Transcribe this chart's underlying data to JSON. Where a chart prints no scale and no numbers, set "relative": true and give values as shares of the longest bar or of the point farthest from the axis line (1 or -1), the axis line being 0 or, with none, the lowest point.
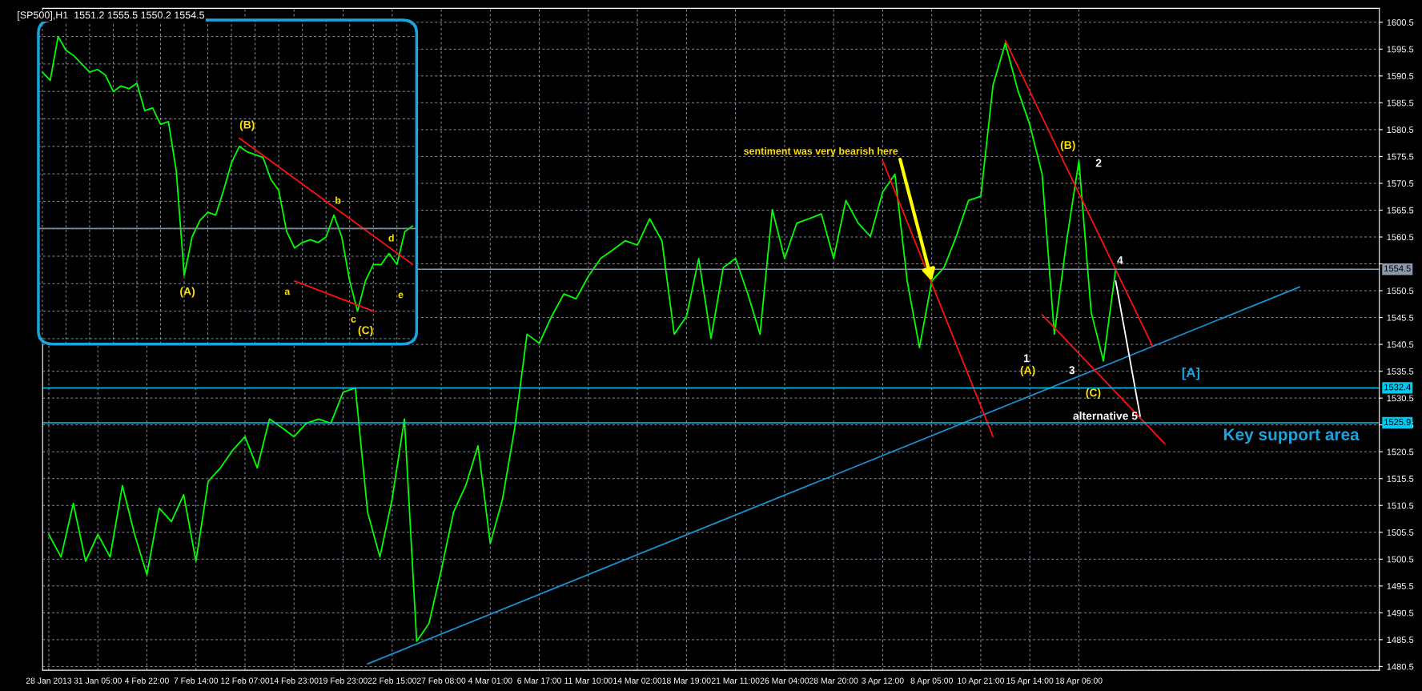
{
  "chart_data": [
    {
      "type": "line",
      "title": "[SP500],H1  1551.2 1555.5 1550.2 1554.5",
      "categories": [
        "28 Jan 2013",
        null,
        null,
        null,
        "31 Jan 05:00",
        null,
        null,
        null,
        "4 Feb 22:00",
        null,
        null,
        null,
        "7 Feb 14:00",
        null,
        null,
        null,
        "12 Feb 07:00",
        null,
        null,
        null,
        "14 Feb 23:00",
        null,
        null,
        null,
        "19 Feb 23:00",
        null,
        null,
        null,
        "22 Feb 15:00",
        null,
        null,
        null,
        "27 Feb 08:00",
        null,
        null,
        null,
        "4 Mar 01:00",
        null,
        null,
        null,
        "6 Mar 17:00",
        null,
        null,
        null,
        "11 Mar 10:00",
        null,
        null,
        null,
        "14 Mar 02:00",
        null,
        null,
        null,
        "18 Mar 19:00",
        null,
        null,
        null,
        "21 Mar 11:00",
        null,
        null,
        null,
        "26 Mar 04:00",
        null,
        null,
        null,
        "28 Mar 20:00",
        null,
        null,
        null,
        "3 Apr 12:00",
        null,
        null,
        null,
        "8 Apr 05:00",
        null,
        null,
        null,
        "10 Apr 21:00",
        null,
        null,
        null,
        "15 Apr 14:00",
        null,
        null,
        null,
        "18 Apr 06:00",
        null,
        null,
        null,
        null,
        null,
        null,
        null,
        null,
        null,
        null,
        null,
        null,
        null,
        null,
        null,
        null,
        null,
        null,
        null,
        null,
        null,
        null,
        null,
        null
      ],
      "ylim": [
        1479.8,
        1603.1
      ],
      "yticks": [
        1480.5,
        1485.5,
        1490.5,
        1495.5,
        1500.5,
        1505.5,
        1510.5,
        1515.5,
        1520.5,
        1525.5,
        1530.5,
        1535.5,
        1540.5,
        1545.5,
        1550.5,
        {
          "value": 1555.5,
          "label": null
        },
        1560.5,
        1565.5,
        1570.5,
        1575.5,
        1580.5,
        1585.5,
        1590.5,
        1595.5,
        1600.5
      ],
      "grid": true,
      "legend": false,
      "ref_lines": [
        {
          "axis": "y",
          "value": 1554.5,
          "label": "1554.5",
          "color": "#8a9aa9"
        },
        {
          "axis": "y",
          "value": 1532.4,
          "label": "1532.4",
          "color": "#00c8f0"
        },
        {
          "axis": "y",
          "value": 1525.9,
          "label": "1525.9",
          "color": "#00c8f0"
        }
      ],
      "annotations": [
        {
          "text": "sentiment was very bearish here",
          "x": "8 Apr 05:00",
          "y": 1552.3
        },
        "(B)",
        "2",
        "4",
        "1",
        "(A)",
        "3",
        "(C)",
        "alternative 5",
        "[A]",
        "Key support area"
      ],
      "series": [
        {
          "color": "#00ff00",
          "values": [
            1505.1,
            1500.9,
            1510.9,
            1500.1,
            1505.1,
            1500.9,
            1514.2,
            1505.1,
            1497.6,
            1510.0,
            1507.5,
            1512.5,
            1500.1,
            1515.0,
            1517.5,
            1520.8,
            1523.3,
            1517.5,
            1526.6,
            1525.0,
            1523.3,
            1525.8,
            1526.6,
            1525.8,
            1531.6,
            1532.4,
            1509.2,
            1500.9,
            1511.7,
            1526.6,
            1485.2,
            1488.5,
            1498.4,
            1509.2,
            1514.2,
            1521.6,
            1503.4,
            1511.7,
            1525.0,
            1542.4,
            1540.7,
            1545.7,
            1549.9,
            1549.0,
            1553.2,
            1556.5,
            1558.1,
            1559.8,
            1559.0,
            1563.9,
            1559.8,
            1542.4,
            1545.7,
            1556.5,
            1541.6,
            1554.8,
            1556.5,
            1549.9,
            1542.4,
            1565.6,
            1556.5,
            1563.1,
            1563.9,
            1564.8,
            1556.5,
            1567.3,
            1563.1,
            1560.6,
            1568.9,
            1572.2,
            1552.3,
            1539.9,
            1552.3,
            1554.8,
            1560.6,
            1567.3,
            1568.1,
            1588.8,
            1596.6,
            1588.0,
            1581.4,
            1572.2,
            1542.4,
            1559.8,
            1574.7,
            1546.5,
            1537.4,
            1554.5,
            null,
            null,
            null,
            null,
            null,
            null,
            null,
            null,
            null,
            null,
            null,
            null,
            null,
            null,
            null,
            null,
            null,
            null,
            null,
            null,
            null
          ]
        },
        {
          "color": "#1a8fd0",
          "values": [
            null,
            null,
            null,
            null,
            null,
            null,
            null,
            null,
            null,
            null,
            null,
            null,
            null,
            null,
            null,
            null,
            null,
            null,
            null,
            null,
            null,
            null,
            null,
            null,
            null,
            null,
            1481.0,
            null,
            null,
            null,
            null,
            null,
            null,
            null,
            null,
            null,
            null,
            null,
            null,
            null,
            null,
            null,
            null,
            null,
            null,
            null,
            null,
            null,
            null,
            null,
            null,
            null,
            null,
            null,
            null,
            null,
            null,
            null,
            null,
            null,
            null,
            null,
            null,
            null,
            null,
            null,
            null,
            null,
            null,
            null,
            null,
            null,
            null,
            null,
            null,
            null,
            null,
            null,
            null,
            null,
            null,
            null,
            null,
            null,
            null,
            null,
            null,
            null,
            null,
            null,
            null,
            null,
            null,
            null,
            null,
            null,
            null,
            null,
            null,
            null,
            null,
            null,
            1551.2,
            null,
            null,
            null,
            null,
            null,
            null
          ]
        },
        {
          "color": "#ff1010",
          "values": [
            null,
            null,
            null,
            null,
            null,
            null,
            null,
            null,
            null,
            null,
            null,
            null,
            null,
            null,
            null,
            null,
            null,
            null,
            null,
            null,
            null,
            null,
            null,
            null,
            null,
            null,
            null,
            null,
            null,
            null,
            null,
            null,
            null,
            null,
            null,
            null,
            null,
            null,
            null,
            null,
            null,
            null,
            null,
            null,
            null,
            null,
            null,
            null,
            null,
            null,
            null,
            null,
            null,
            null,
            null,
            null,
            null,
            null,
            null,
            null,
            null,
            null,
            null,
            null,
            null,
            null,
            null,
            null,
            1574.7,
            null,
            null,
            null,
            null,
            null,
            null,
            null,
            null,
            1523.3,
            null,
            null,
            null,
            null,
            null,
            null,
            null,
            null,
            null,
            null,
            null,
            null,
            null,
            null,
            null,
            null,
            null,
            null,
            null,
            null,
            null,
            null,
            null,
            null,
            null,
            null,
            null,
            null,
            null,
            null,
            null
          ]
        },
        {
          "color": "#ff1010",
          "values": [
            null,
            null,
            null,
            null,
            null,
            null,
            null,
            null,
            null,
            null,
            null,
            null,
            null,
            null,
            null,
            null,
            null,
            null,
            null,
            null,
            null,
            null,
            null,
            null,
            null,
            null,
            null,
            null,
            null,
            null,
            null,
            null,
            null,
            null,
            null,
            null,
            null,
            null,
            null,
            null,
            null,
            null,
            null,
            null,
            null,
            null,
            null,
            null,
            null,
            null,
            null,
            null,
            null,
            null,
            null,
            null,
            null,
            null,
            null,
            null,
            null,
            null,
            null,
            null,
            null,
            null,
            null,
            null,
            null,
            null,
            null,
            null,
            null,
            null,
            null,
            null,
            null,
            null,
            1597.1,
            null,
            null,
            null,
            null,
            null,
            null,
            null,
            null,
            null,
            null,
            null,
            1540.2,
            null,
            null,
            null,
            null,
            null,
            null,
            null,
            null,
            null,
            null,
            null,
            null,
            null,
            null,
            null,
            null,
            null,
            null
          ]
        },
        {
          "color": "#ff1010",
          "values": [
            null,
            null,
            null,
            null,
            null,
            null,
            null,
            null,
            null,
            null,
            null,
            null,
            null,
            null,
            null,
            null,
            null,
            null,
            null,
            null,
            null,
            null,
            null,
            null,
            null,
            null,
            null,
            null,
            null,
            null,
            null,
            null,
            null,
            null,
            null,
            null,
            null,
            null,
            null,
            null,
            null,
            null,
            null,
            null,
            null,
            null,
            null,
            null,
            null,
            null,
            null,
            null,
            null,
            null,
            null,
            null,
            null,
            null,
            null,
            null,
            null,
            null,
            null,
            null,
            null,
            null,
            null,
            null,
            null,
            null,
            null,
            null,
            null,
            null,
            null,
            null,
            null,
            null,
            null,
            null,
            null,
            1546.0,
            null,
            null,
            null,
            null,
            null,
            null,
            null,
            null,
            null,
            1522.0,
            null,
            null,
            null,
            null,
            null,
            null,
            null,
            null,
            null,
            null,
            null,
            null,
            null,
            null,
            null,
            null,
            null
          ]
        },
        {
          "color": "#ffffff",
          "values": [
            null,
            null,
            null,
            null,
            null,
            null,
            null,
            null,
            null,
            null,
            null,
            null,
            null,
            null,
            null,
            null,
            null,
            null,
            null,
            null,
            null,
            null,
            null,
            null,
            null,
            null,
            null,
            null,
            null,
            null,
            null,
            null,
            null,
            null,
            null,
            null,
            null,
            null,
            null,
            null,
            null,
            null,
            null,
            null,
            null,
            null,
            null,
            null,
            null,
            null,
            null,
            null,
            null,
            null,
            null,
            null,
            null,
            null,
            null,
            null,
            null,
            null,
            null,
            null,
            null,
            null,
            null,
            null,
            null,
            null,
            null,
            null,
            null,
            null,
            null,
            null,
            null,
            null,
            null,
            null,
            null,
            null,
            null,
            null,
            null,
            null,
            null,
            1552.3,
            null,
            1527.1,
            null,
            null,
            null,
            null,
            null,
            null,
            null,
            null,
            null,
            null,
            null,
            null,
            null,
            null,
            null,
            null,
            null,
            null,
            null
          ]
        }
      ]
    },
    {
      "type": "line",
      "relative": true,
      "grid": true,
      "legend": false,
      "categories": [
        null,
        null,
        null,
        null,
        null,
        null,
        null,
        null,
        null,
        null,
        null,
        null,
        null,
        null,
        null,
        null,
        null,
        null,
        null,
        null,
        null,
        null,
        null,
        null,
        null,
        null,
        null,
        null,
        null,
        null,
        null,
        null,
        null,
        null,
        null,
        null,
        null,
        null,
        null,
        null,
        null,
        null,
        null,
        null,
        null,
        null,
        null,
        null
      ],
      "ref_lines": [
        {
          "axis": "y",
          "value": 0.301,
          "color": "#7a8a99"
        }
      ],
      "annotations": [
        "(B)",
        "b",
        "d",
        "e",
        "(A)",
        "a",
        "c",
        "(C)"
      ],
      "series": [
        {
          "color": "#00ff00",
          "values": [
            0.87,
            0.84,
            1,
            0.95,
            0.93,
            0.9,
            0.87,
            0.88,
            0.86,
            0.8,
            0.82,
            0.81,
            0.83,
            0.73,
            0.74,
            0.68,
            0.69,
            0.51,
            0.13,
            0.27,
            0.33,
            0.36,
            0.35,
            0.44,
            0.54,
            0.6,
            0.58,
            0.57,
            0.56,
            0.48,
            0.44,
            0.29,
            0.23,
            0.25,
            0.26,
            0.25,
            0.27,
            0.35,
            0.27,
            0.11,
            0,
            0.11,
            0.17,
            0.17,
            0.21,
            0.17,
            0.29,
            0.31
          ]
        },
        {
          "color": "#ff1010",
          "values": [
            null,
            null,
            null,
            null,
            null,
            null,
            null,
            null,
            null,
            null,
            null,
            null,
            null,
            null,
            null,
            null,
            null,
            null,
            null,
            null,
            null,
            null,
            null,
            null,
            null,
            0.63,
            null,
            null,
            null,
            null,
            null,
            null,
            null,
            null,
            null,
            null,
            null,
            null,
            null,
            null,
            null,
            null,
            null,
            null,
            null,
            null,
            null,
            0.17
          ]
        },
        {
          "color": "#ff1010",
          "values": [
            null,
            null,
            null,
            null,
            null,
            null,
            null,
            null,
            null,
            null,
            null,
            null,
            null,
            null,
            null,
            null,
            null,
            null,
            null,
            null,
            null,
            null,
            null,
            null,
            null,
            null,
            null,
            null,
            null,
            null,
            null,
            null,
            0.11,
            null,
            null,
            null,
            null,
            null,
            null,
            null,
            null,
            null,
            0.0,
            null,
            null,
            null,
            null,
            null
          ]
        }
      ]
    }
  ]
}
